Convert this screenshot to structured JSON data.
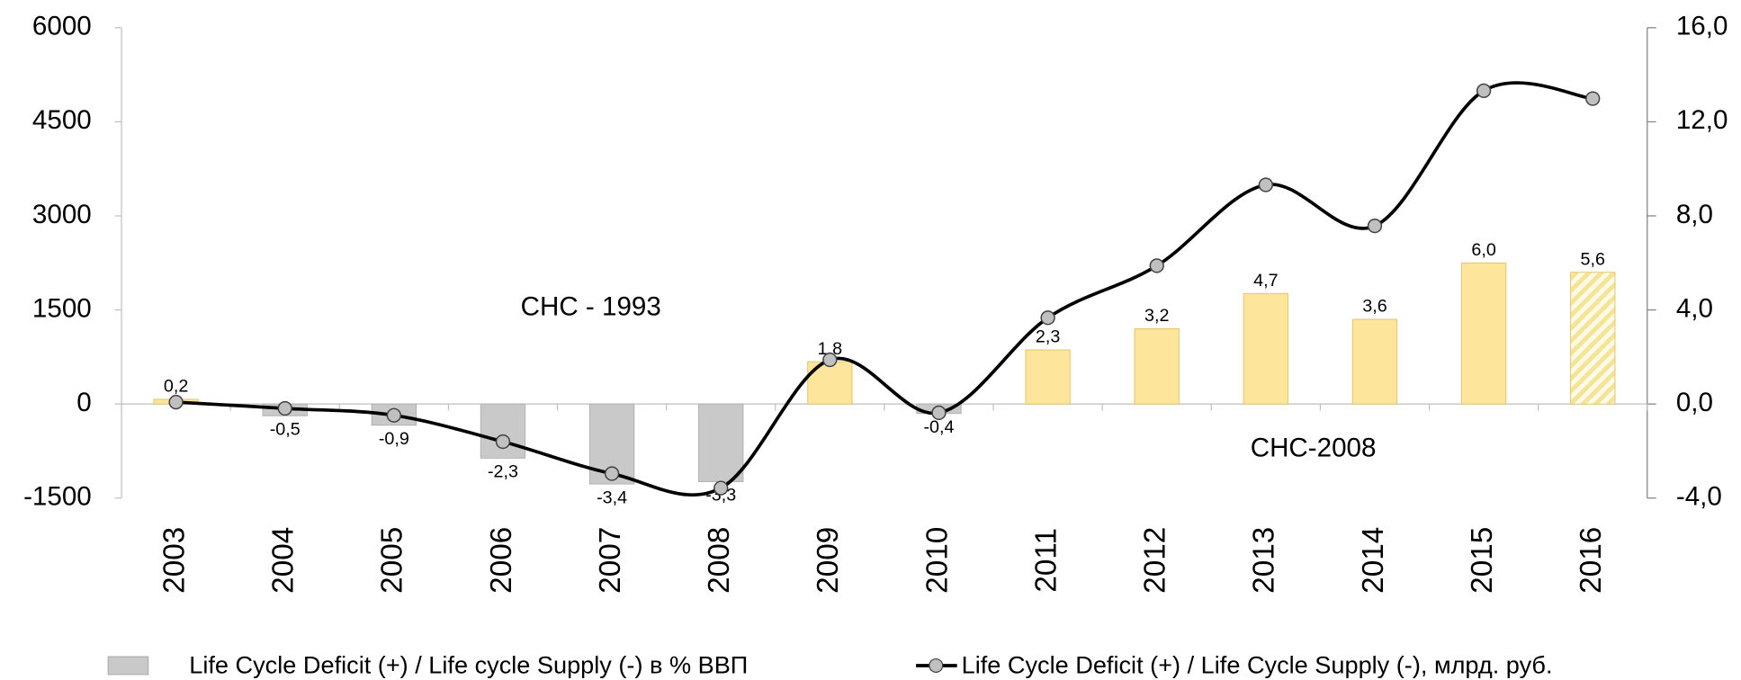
{
  "chart_data": {
    "type": "bar_line",
    "categories": [
      "2003",
      "2004",
      "2005",
      "2006",
      "2007",
      "2008",
      "2009",
      "2010",
      "2011",
      "2012",
      "2013",
      "2014",
      "2015",
      "2016"
    ],
    "series": [
      {
        "name": "Life Cycle Deficit (+) / Life cycle Supply (-)  в  % ВВП",
        "type": "bar",
        "axis": "y2",
        "color": "#c9c9c9",
        "values": [
          0.2,
          -0.5,
          -0.9,
          -2.3,
          -3.4,
          -3.3,
          1.8,
          -0.4,
          2.3,
          3.2,
          4.7,
          3.6,
          6.0,
          5.6
        ],
        "value_labels": [
          "0,2",
          "-0,5",
          "-0,9",
          "-2,3",
          "-3,4",
          "-3,3",
          "1,8",
          "-0,4",
          "2,3",
          "3,2",
          "4,7",
          "3,6",
          "6,0",
          "5,6"
        ],
        "colors": [
          "#fde59b",
          "#c9c9c9",
          "#c9c9c9",
          "#c9c9c9",
          "#c9c9c9",
          "#c9c9c9",
          "#fde59b",
          "#c9c9c9",
          "#fde59b",
          "#fde59b",
          "#fde59b",
          "#fde59b",
          "#fde59b",
          "#fde59b"
        ],
        "hatched": [
          false,
          false,
          false,
          false,
          false,
          false,
          false,
          false,
          false,
          false,
          false,
          false,
          false,
          true
        ]
      },
      {
        "name": "Life Cycle Deficit (+) / Life Cycle Supply (-), млрд. руб.",
        "type": "line",
        "color": "#000000",
        "values": [
          30,
          -70,
          -180,
          -600,
          -1110,
          -1340,
          705,
          -140,
          1375,
          2205,
          3495,
          2840,
          4995,
          4870
        ]
      }
    ],
    "ylim": [
      -1500,
      6000
    ],
    "yticks": [
      -1500,
      0,
      1500,
      3000,
      4500,
      6000
    ],
    "y2lim": [
      -4,
      16
    ],
    "y2ticks": [
      {
        "value": -4,
        "label": "-4,0"
      },
      {
        "value": 0,
        "label": "0,0"
      },
      {
        "value": 4,
        "label": "4,0"
      },
      {
        "value": 8,
        "label": "8,0"
      },
      {
        "value": 12,
        "label": "12,0"
      },
      {
        "value": 16,
        "label": "16,0"
      }
    ],
    "annotations": [
      "СНС - 1993",
      "СНС-2008"
    ]
  }
}
